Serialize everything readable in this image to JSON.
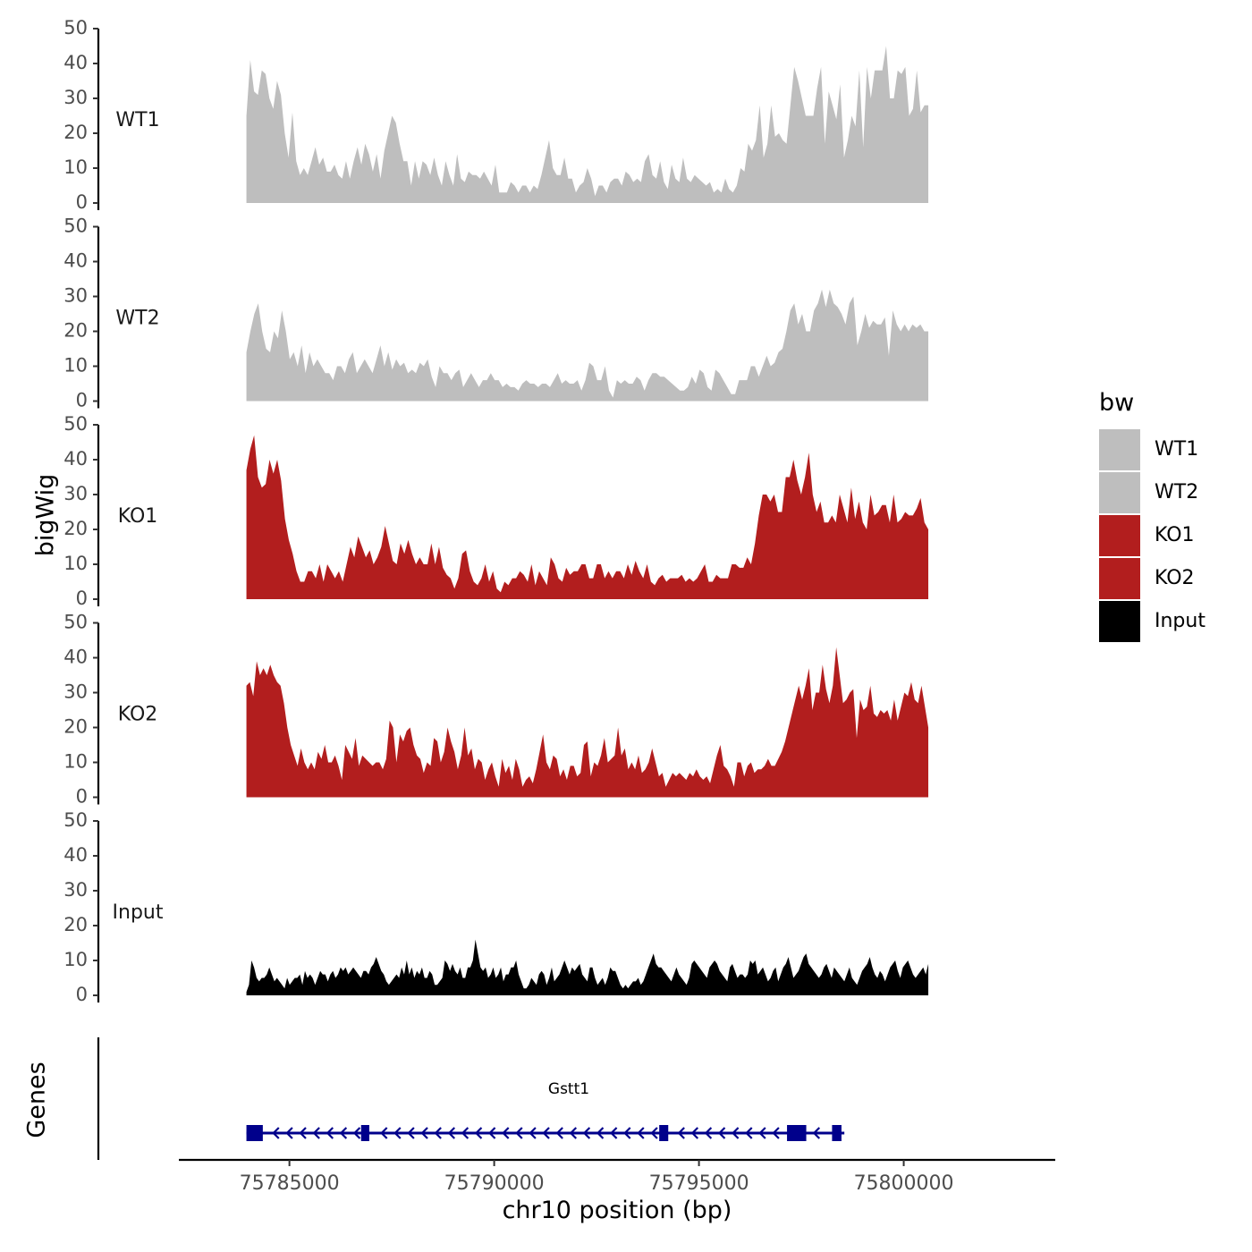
{
  "chart_data": {
    "type": "area",
    "y_axis_title": "bigWig",
    "x_axis_title": "chr10 position (bp)",
    "genes_axis_title": "Genes",
    "xlim": [
      75782300,
      75803700
    ],
    "x_ticks": [
      75785000,
      75790000,
      75795000,
      75800000
    ],
    "x_tick_labels": [
      "75785000",
      "75790000",
      "75795000",
      "75800000"
    ],
    "region": [
      75783950,
      75800600
    ],
    "ylim": [
      0,
      50
    ],
    "y_ticks": [
      0,
      10,
      20,
      30,
      40,
      50
    ],
    "y_tick_labels": [
      "0",
      "10",
      "20",
      "30",
      "40",
      "50"
    ],
    "tracks": [
      {
        "name": "WT1",
        "color": "#bebebe",
        "values": [
          25,
          41,
          32,
          31,
          38,
          37,
          30,
          27,
          35,
          31,
          20,
          13,
          26,
          12,
          8,
          10,
          8,
          12,
          16,
          11,
          13,
          9,
          9,
          11,
          8,
          7,
          12,
          7,
          12,
          16,
          11,
          17,
          14,
          9,
          14,
          7,
          15,
          20,
          25,
          23,
          17,
          12,
          12,
          5,
          12,
          7,
          12,
          11,
          8,
          13,
          8,
          5,
          12,
          8,
          5,
          14,
          7,
          6,
          9,
          8,
          8,
          7,
          9,
          7,
          5,
          11,
          3,
          3,
          3,
          6,
          5,
          3,
          5,
          5,
          3,
          5,
          4,
          8,
          13,
          18,
          10,
          8,
          8,
          13,
          7,
          7,
          3,
          5,
          6,
          10,
          7,
          2,
          5,
          5,
          3,
          6,
          7,
          7,
          5,
          9,
          8,
          6,
          7,
          6,
          12,
          14,
          8,
          7,
          12,
          6,
          4,
          11,
          7,
          6,
          13,
          7,
          6,
          8,
          7,
          6,
          5,
          6,
          3,
          4,
          3,
          7,
          4,
          3,
          5,
          10,
          9,
          17,
          15,
          18,
          28,
          13,
          17,
          28,
          19,
          20,
          18,
          17,
          28,
          39,
          35,
          30,
          25,
          25,
          25,
          33,
          39,
          17,
          32,
          28,
          24,
          34,
          13,
          18,
          25,
          22,
          38,
          16,
          39,
          30,
          38,
          38,
          38,
          45,
          30,
          30,
          38,
          37,
          39,
          25,
          27,
          38,
          26,
          28,
          28
        ]
      },
      {
        "name": "WT2",
        "color": "#bebebe",
        "values": [
          14,
          20,
          25,
          28,
          20,
          15,
          14,
          20,
          18,
          26,
          20,
          12,
          14,
          10,
          16,
          8,
          14,
          10,
          12,
          10,
          8,
          8,
          6,
          10,
          10,
          8,
          12,
          14,
          8,
          10,
          12,
          10,
          8,
          12,
          16,
          10,
          14,
          9,
          12,
          10,
          11,
          8,
          9,
          8,
          11,
          10,
          12,
          7,
          4,
          10,
          8,
          8,
          6,
          8,
          9,
          4,
          6,
          8,
          6,
          4,
          6,
          6,
          8,
          6,
          6,
          4,
          5,
          4,
          4,
          3,
          5,
          6,
          5,
          5,
          4,
          5,
          5,
          4,
          6,
          8,
          5,
          6,
          5,
          5,
          6,
          3,
          6,
          11,
          10,
          6,
          6,
          10,
          3,
          1,
          6,
          5,
          6,
          5,
          5,
          7,
          6,
          3,
          6,
          8,
          8,
          7,
          7,
          6,
          5,
          4,
          3,
          3,
          4,
          7,
          5,
          9,
          8,
          4,
          3,
          9,
          8,
          6,
          4,
          2,
          2,
          6,
          6,
          6,
          10,
          10,
          7,
          10,
          13,
          10,
          11,
          14,
          15,
          20,
          26,
          28,
          22,
          25,
          20,
          20,
          26,
          28,
          32,
          27,
          32,
          28,
          27,
          25,
          22,
          28,
          30,
          16,
          20,
          25,
          21,
          23,
          22,
          22,
          24,
          13,
          26,
          22,
          20,
          22,
          20,
          22,
          21,
          22,
          20,
          20
        ]
      },
      {
        "name": "KO1",
        "color": "#b21e1e",
        "values": [
          37,
          43,
          47,
          35,
          32,
          33,
          40,
          36,
          40,
          34,
          23,
          17,
          13,
          8,
          5,
          5,
          8,
          8,
          6,
          10,
          5,
          10,
          8,
          6,
          8,
          5,
          10,
          15,
          12,
          18,
          15,
          12,
          14,
          10,
          12,
          15,
          21,
          16,
          11,
          10,
          16,
          13,
          17,
          13,
          10,
          12,
          10,
          10,
          16,
          10,
          15,
          9,
          7,
          6,
          3,
          6,
          13,
          14,
          8,
          5,
          4,
          6,
          10,
          5,
          8,
          3,
          2,
          5,
          4,
          6,
          6,
          8,
          7,
          5,
          10,
          4,
          8,
          6,
          4,
          12,
          10,
          6,
          5,
          9,
          7,
          8,
          8,
          10,
          10,
          6,
          6,
          10,
          10,
          6,
          8,
          6,
          8,
          8,
          6,
          10,
          7,
          11,
          8,
          6,
          10,
          5,
          4,
          6,
          7,
          5,
          6,
          6,
          6,
          7,
          5,
          6,
          5,
          6,
          8,
          10,
          5,
          5,
          7,
          6,
          6,
          6,
          10,
          10,
          9,
          9,
          12,
          10,
          16,
          24,
          30,
          30,
          28,
          30,
          25,
          25,
          35,
          35,
          40,
          34,
          30,
          35,
          42,
          30,
          25,
          28,
          22,
          22,
          24,
          22,
          30,
          26,
          22,
          32,
          23,
          28,
          22,
          20,
          30,
          24,
          25,
          27,
          27,
          22,
          30,
          22,
          23,
          25,
          24,
          24,
          26,
          29,
          22,
          20
        ]
      },
      {
        "name": "KO2",
        "color": "#b21e1e",
        "values": [
          32,
          33,
          29,
          39,
          35,
          37,
          35,
          38,
          35,
          33,
          32,
          27,
          20,
          15,
          12,
          9,
          14,
          10,
          8,
          10,
          8,
          13,
          11,
          15,
          10,
          10,
          12,
          9,
          5,
          15,
          13,
          11,
          17,
          9,
          12,
          11,
          10,
          9,
          10,
          10,
          8,
          11,
          22,
          20,
          10,
          18,
          16,
          19,
          20,
          15,
          12,
          11,
          7,
          10,
          9,
          17,
          16,
          10,
          13,
          20,
          16,
          13,
          8,
          12,
          20,
          12,
          14,
          8,
          11,
          10,
          5,
          8,
          10,
          6,
          3,
          11,
          7,
          9,
          5,
          11,
          8,
          3,
          5,
          6,
          4,
          8,
          13,
          18,
          10,
          8,
          12,
          11,
          6,
          8,
          5,
          9,
          9,
          6,
          7,
          15,
          16,
          6,
          10,
          9,
          12,
          17,
          10,
          11,
          12,
          20,
          12,
          14,
          8,
          10,
          8,
          12,
          7,
          8,
          10,
          14,
          10,
          6,
          7,
          3,
          5,
          7,
          6,
          7,
          6,
          5,
          7,
          6,
          8,
          6,
          5,
          6,
          4,
          8,
          12,
          15,
          9,
          8,
          6,
          3,
          10,
          10,
          6,
          9,
          10,
          7,
          8,
          8,
          9,
          11,
          9,
          9,
          11,
          13,
          16,
          20,
          24,
          28,
          32,
          28,
          32,
          37,
          25,
          30,
          30,
          38,
          31,
          27,
          32,
          43,
          35,
          27,
          28,
          30,
          31,
          17,
          28,
          25,
          26,
          32,
          24,
          23,
          25,
          24,
          25,
          22,
          28,
          22,
          26,
          30,
          29,
          33,
          28,
          27,
          32,
          26,
          20
        ]
      },
      {
        "name": "Input",
        "color": "#000000",
        "values": [
          1,
          3,
          10,
          8,
          5,
          4,
          5,
          5,
          6,
          8,
          6,
          4,
          5,
          4,
          3,
          2,
          5,
          3,
          4,
          5,
          5,
          6,
          3,
          7,
          5,
          6,
          5,
          3,
          5,
          7,
          6,
          6,
          4,
          6,
          7,
          5,
          6,
          8,
          7,
          8,
          6,
          7,
          8,
          7,
          6,
          5,
          7,
          7,
          6,
          8,
          9,
          11,
          9,
          7,
          6,
          4,
          3,
          4,
          5,
          6,
          5,
          8,
          6,
          10,
          6,
          8,
          5,
          7,
          6,
          8,
          5,
          5,
          7,
          6,
          3,
          3,
          4,
          5,
          10,
          9,
          7,
          9,
          7,
          6,
          8,
          5,
          5,
          8,
          8,
          10,
          16,
          12,
          8,
          7,
          8,
          5,
          6,
          8,
          5,
          6,
          8,
          4,
          6,
          6,
          8,
          8,
          10,
          6,
          4,
          2,
          2,
          3,
          5,
          4,
          3,
          6,
          7,
          6,
          3,
          5,
          8,
          4,
          5,
          6,
          8,
          10,
          8,
          6,
          8,
          7,
          8,
          9,
          6,
          5,
          4,
          8,
          8,
          5,
          3,
          4,
          5,
          3,
          5,
          8,
          7,
          7,
          5,
          3,
          2,
          3,
          2,
          3,
          4,
          4,
          5,
          3,
          4,
          6,
          8,
          10,
          12,
          9,
          8,
          8,
          7,
          6,
          5,
          4,
          6,
          8,
          6,
          5,
          4,
          3,
          5,
          9,
          10,
          9,
          8,
          7,
          6,
          5,
          8,
          9,
          10,
          9,
          7,
          6,
          5,
          4,
          8,
          9,
          7,
          5,
          6,
          6,
          5,
          6,
          10,
          9,
          10,
          6,
          7,
          8,
          6,
          4,
          5,
          7,
          8,
          4,
          6,
          8,
          9,
          11,
          8,
          5,
          6,
          7,
          9,
          11,
          12,
          9,
          8,
          7,
          6,
          5,
          6,
          8,
          9,
          7,
          5,
          8,
          7,
          6,
          5,
          4,
          6,
          8,
          5,
          4,
          3,
          5,
          7,
          8,
          9,
          11,
          8,
          6,
          5,
          7,
          6,
          4,
          6,
          8,
          9,
          10,
          7,
          5,
          8,
          9,
          10,
          8,
          6,
          5,
          6,
          7,
          8,
          6,
          9
        ]
      }
    ],
    "gene": {
      "name": "Gstt1",
      "color": "#00008b",
      "start": 75783950,
      "end": 75798550,
      "strand": "-",
      "exons": [
        [
          75783950,
          75784350
        ],
        [
          75786750,
          75786950
        ],
        [
          75794030,
          75794250
        ],
        [
          75797150,
          75797620
        ],
        [
          75798250,
          75798480
        ]
      ],
      "arrow_spacing_bp": 330
    },
    "legend": {
      "title": "bw",
      "position": "right",
      "entries": [
        {
          "label": "WT1",
          "color": "#bebebe"
        },
        {
          "label": "WT2",
          "color": "#bebebe"
        },
        {
          "label": "KO1",
          "color": "#b21e1e"
        },
        {
          "label": "KO2",
          "color": "#b21e1e"
        },
        {
          "label": "Input",
          "color": "#000000"
        }
      ]
    }
  }
}
